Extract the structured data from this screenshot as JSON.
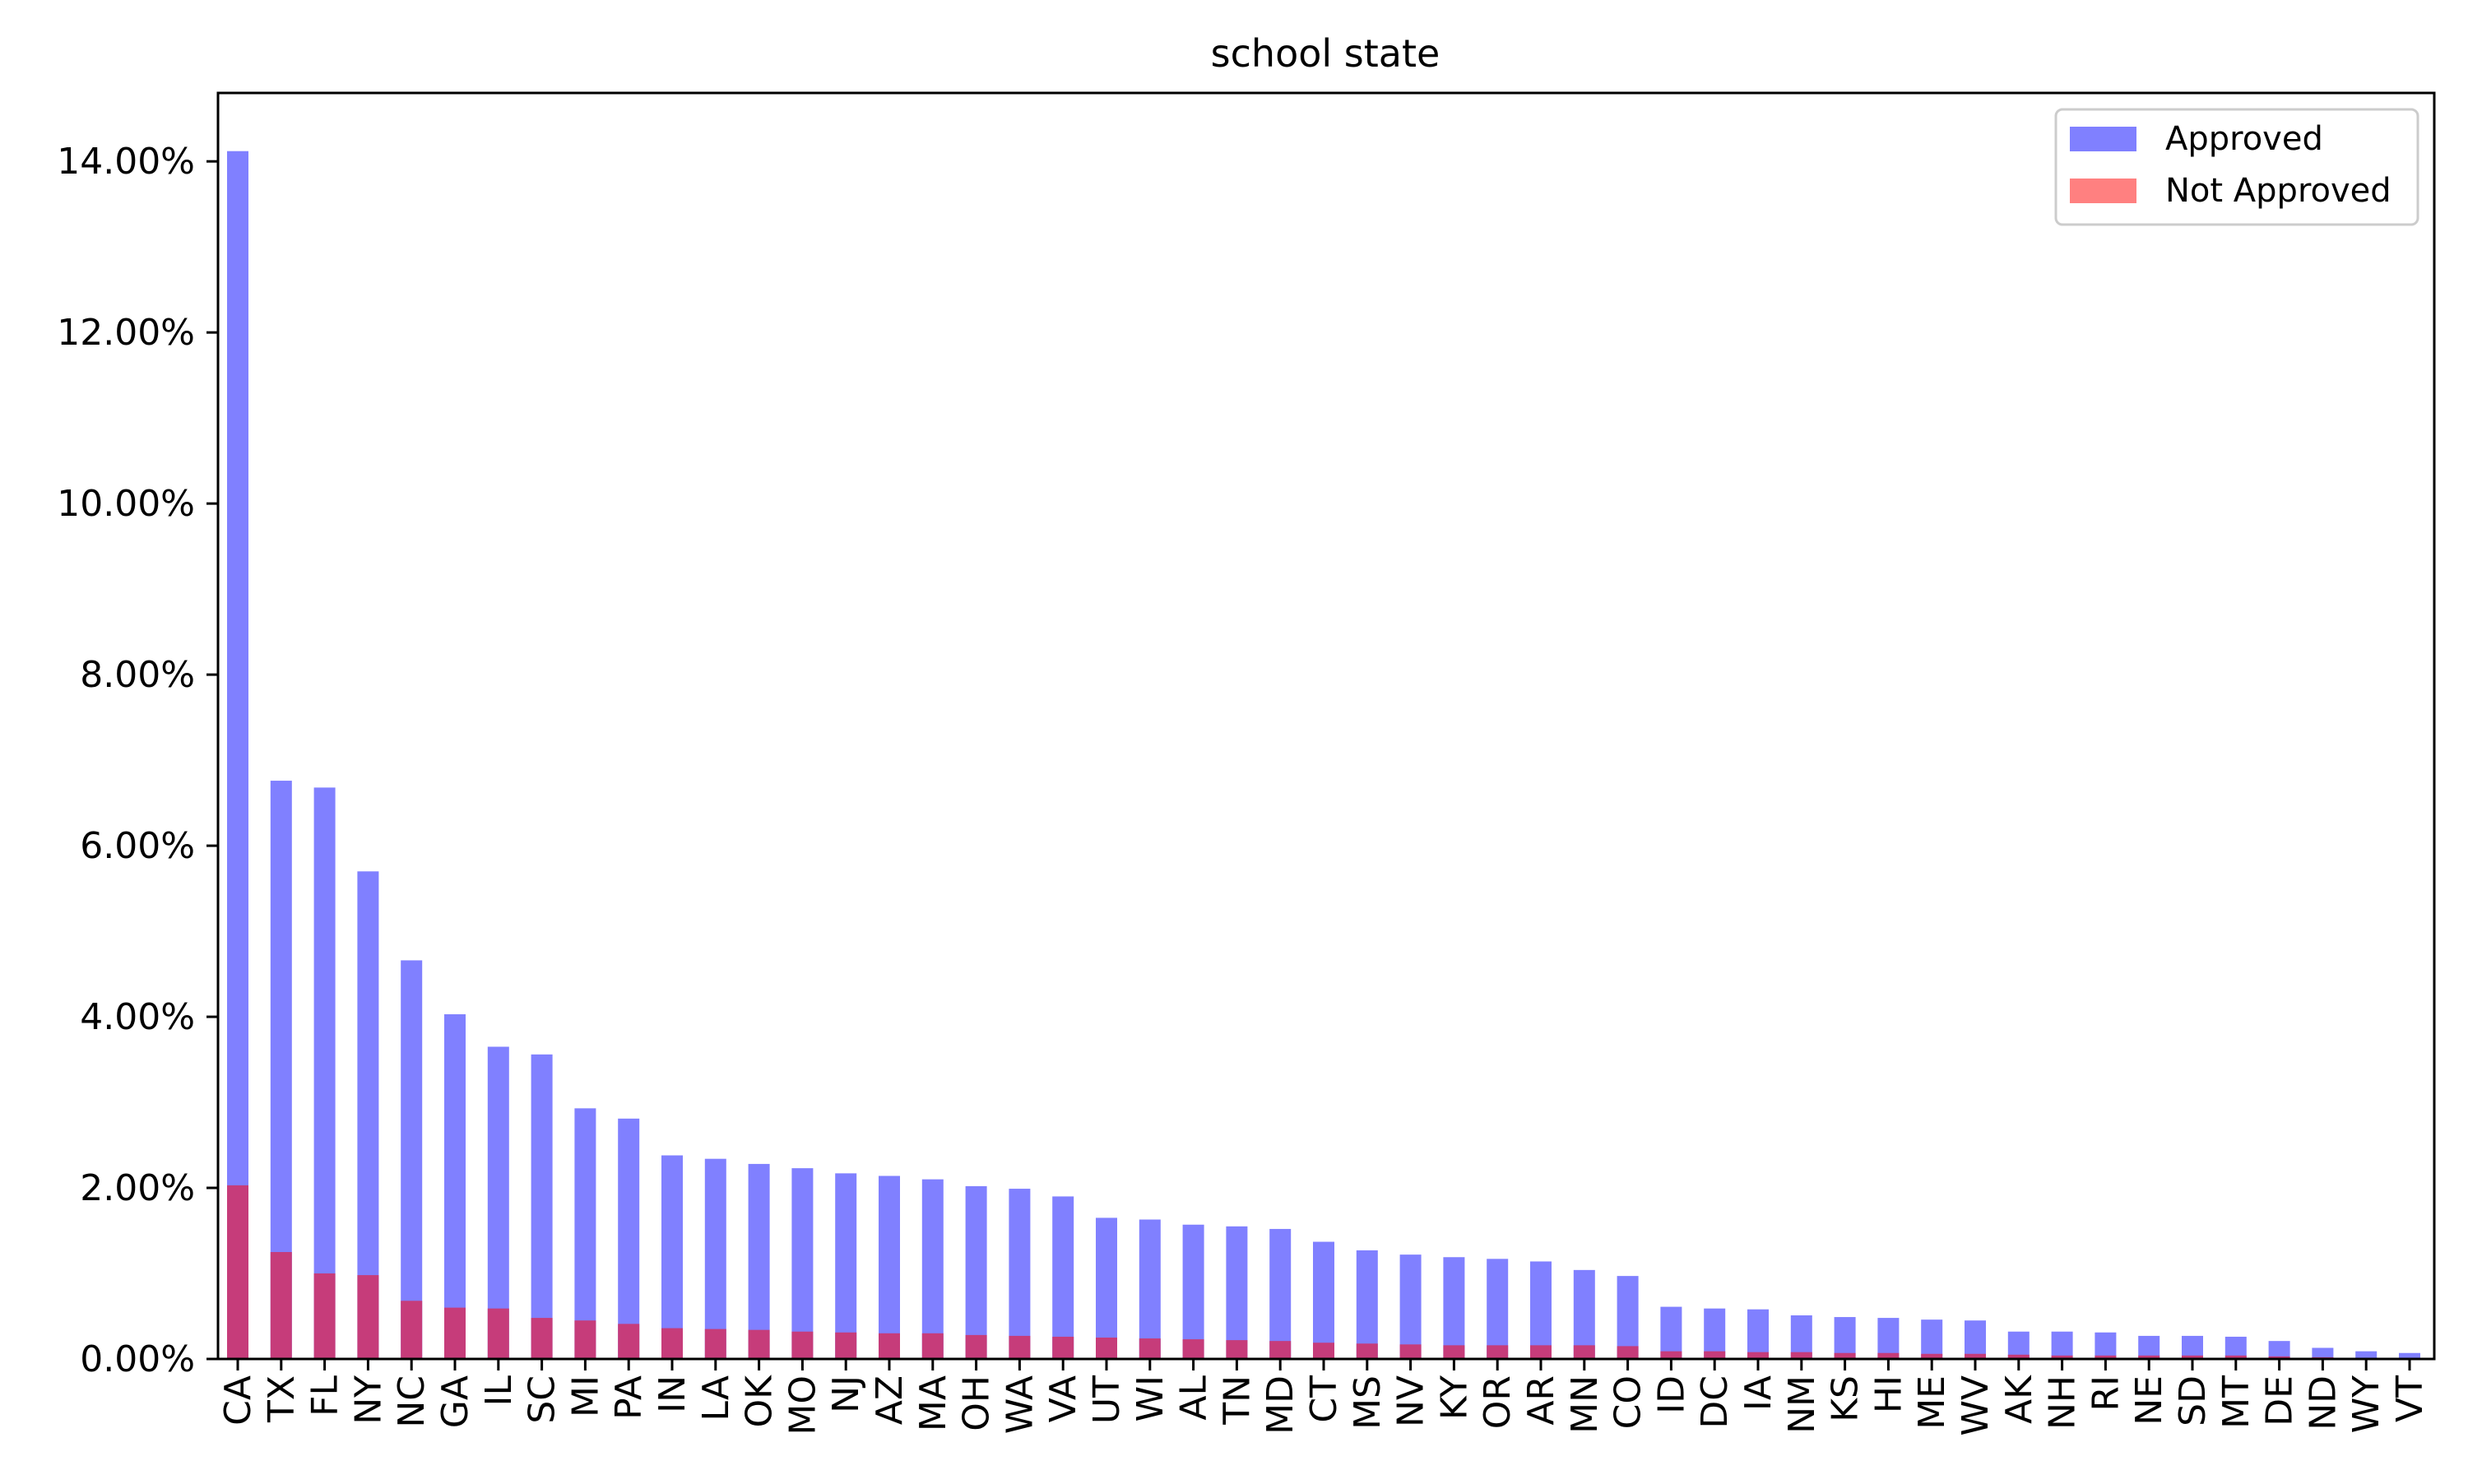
{
  "chart_data": {
    "type": "bar",
    "title": "school state",
    "xlabel": "",
    "ylabel": "",
    "categories": [
      "CA",
      "TX",
      "FL",
      "NY",
      "NC",
      "GA",
      "IL",
      "SC",
      "MI",
      "PA",
      "IN",
      "LA",
      "OK",
      "MO",
      "NJ",
      "AZ",
      "MA",
      "OH",
      "WA",
      "VA",
      "UT",
      "WI",
      "AL",
      "TN",
      "MD",
      "CT",
      "MS",
      "NV",
      "KY",
      "OR",
      "AR",
      "MN",
      "CO",
      "ID",
      "DC",
      "IA",
      "NM",
      "KS",
      "HI",
      "ME",
      "WV",
      "AK",
      "NH",
      "RI",
      "NE",
      "SD",
      "MT",
      "DE",
      "ND",
      "WY",
      "VT"
    ],
    "series": [
      {
        "name": "Approved",
        "color": "#8080ff",
        "values": [
          14.12,
          6.76,
          6.68,
          5.7,
          4.66,
          4.03,
          3.65,
          3.56,
          2.93,
          2.81,
          2.38,
          2.34,
          2.28,
          2.23,
          2.17,
          2.14,
          2.1,
          2.02,
          1.99,
          1.9,
          1.65,
          1.63,
          1.57,
          1.55,
          1.52,
          1.37,
          1.27,
          1.22,
          1.19,
          1.17,
          1.14,
          1.04,
          0.97,
          0.61,
          0.59,
          0.58,
          0.51,
          0.49,
          0.48,
          0.46,
          0.45,
          0.32,
          0.32,
          0.31,
          0.27,
          0.27,
          0.26,
          0.21,
          0.13,
          0.09,
          0.07
        ]
      },
      {
        "name": "Not Approved",
        "color": "#ff8080",
        "values": [
          2.03,
          1.25,
          1.0,
          0.98,
          0.68,
          0.6,
          0.59,
          0.48,
          0.45,
          0.41,
          0.36,
          0.35,
          0.34,
          0.32,
          0.31,
          0.3,
          0.3,
          0.28,
          0.27,
          0.26,
          0.25,
          0.24,
          0.23,
          0.22,
          0.21,
          0.19,
          0.18,
          0.17,
          0.16,
          0.16,
          0.16,
          0.16,
          0.15,
          0.09,
          0.09,
          0.08,
          0.08,
          0.07,
          0.07,
          0.06,
          0.06,
          0.05,
          0.04,
          0.04,
          0.04,
          0.04,
          0.04,
          0.03,
          0.02,
          0.01,
          0.01
        ]
      }
    ],
    "overlap_color": "#c63c7a",
    "ylim": [
      0,
      14.8
    ],
    "yticks": [
      0,
      2,
      4,
      6,
      8,
      10,
      12,
      14
    ],
    "ytick_labels": [
      "0.00%",
      "2.00%",
      "4.00%",
      "6.00%",
      "8.00%",
      "10.00%",
      "12.00%",
      "14.00%"
    ],
    "legend": {
      "position": "top-right"
    },
    "grid": false
  }
}
